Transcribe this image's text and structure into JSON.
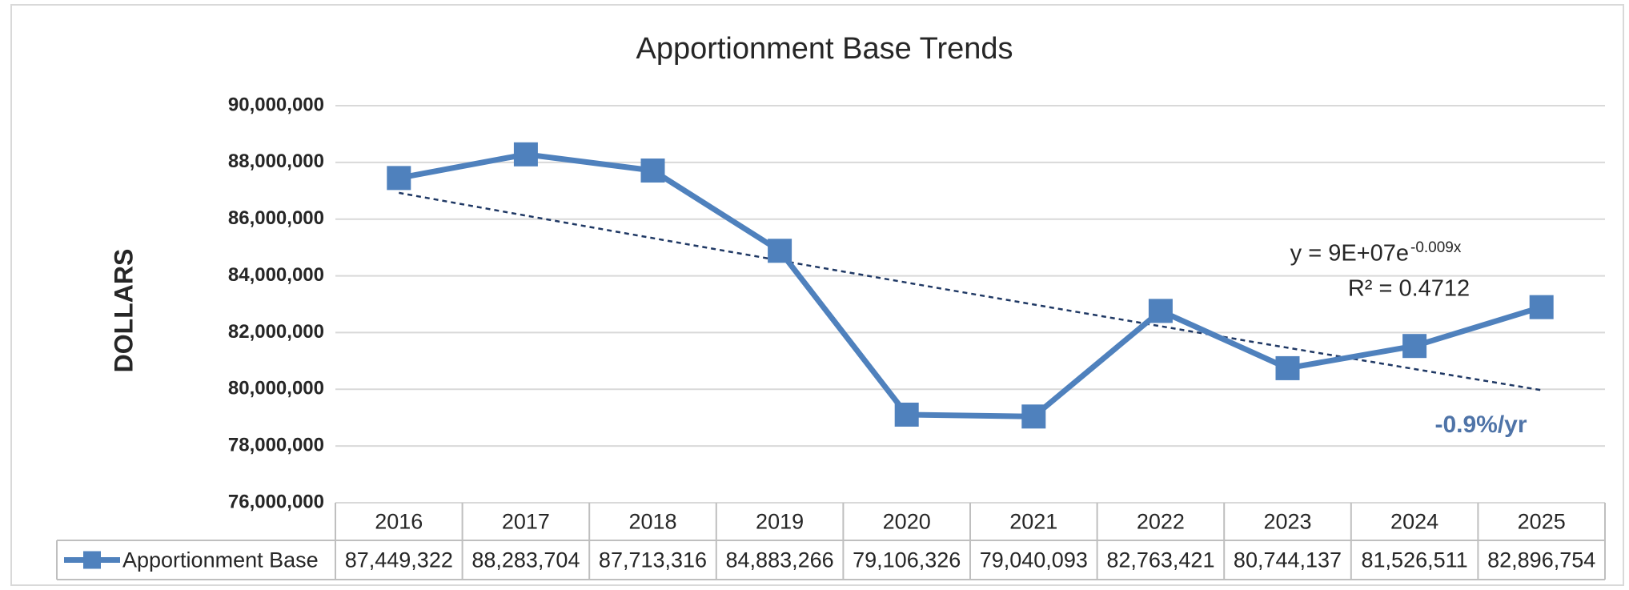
{
  "chart_data": {
    "type": "line",
    "title": "Apportionment Base Trends",
    "y_label": "DOLLARS",
    "categories": [
      "2016",
      "2017",
      "2018",
      "2019",
      "2020",
      "2021",
      "2022",
      "2023",
      "2024",
      "2025"
    ],
    "series": [
      {
        "name": "Apportionment Base",
        "color": "#4f81bd",
        "values": [
          87449322,
          88283704,
          87713316,
          84883266,
          79106326,
          79040093,
          82763421,
          80744137,
          81526511,
          82896754
        ],
        "value_labels": [
          "87,449,322",
          "88,283,704",
          "87,713,316",
          "84,883,266",
          "79,106,326",
          "79,040,093",
          "82,763,421",
          "80,744,137",
          "81,526,511",
          "82,896,754"
        ]
      }
    ],
    "ylim": [
      76000000,
      90000000
    ],
    "yticks": [
      {
        "value": 76000000,
        "label": "76,000,000"
      },
      {
        "value": 78000000,
        "label": "78,000,000"
      },
      {
        "value": 80000000,
        "label": "80,000,000"
      },
      {
        "value": 82000000,
        "label": "82,000,000"
      },
      {
        "value": 84000000,
        "label": "84,000,000"
      },
      {
        "value": 86000000,
        "label": "86,000,000"
      },
      {
        "value": 88000000,
        "label": "88,000,000"
      },
      {
        "value": 90000000,
        "label": "90,000,000"
      }
    ],
    "grid": true,
    "trendline": "exponential",
    "trendline_equation": "y = 9E+07e",
    "trendline_exponent": "-0.009x",
    "r_squared": "R² = 0.4712",
    "growth_label": "-0.9%/yr"
  }
}
